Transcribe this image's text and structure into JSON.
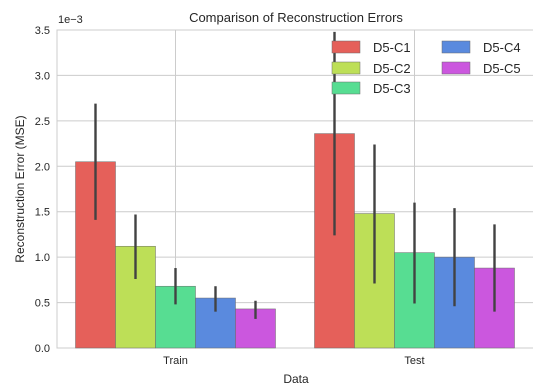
{
  "chart_data": {
    "type": "bar",
    "title": "Comparison of Reconstruction Errors",
    "xlabel": "Data",
    "ylabel": "Reconstruction Error (MSE)",
    "y_offset_label": "1e−3",
    "ylim": [
      0,
      3.5
    ],
    "yticks": [
      "0.0",
      "0.5",
      "1.0",
      "1.5",
      "2.0",
      "2.5",
      "3.0",
      "3.5"
    ],
    "ytick_values": [
      0,
      0.5,
      1.0,
      1.5,
      2.0,
      2.5,
      3.0,
      3.5
    ],
    "categories": [
      "Train",
      "Test"
    ],
    "grid": true,
    "legend_position": "top-right",
    "series": [
      {
        "name": "D5-C1",
        "color": "#e5605a",
        "values": [
          2.05,
          2.36
        ],
        "err_low": [
          1.41,
          1.24
        ],
        "err_high": [
          2.69,
          3.48
        ]
      },
      {
        "name": "D5-C2",
        "color": "#bddf57",
        "values": [
          1.12,
          1.48
        ],
        "err_low": [
          0.76,
          0.71
        ],
        "err_high": [
          1.47,
          2.24
        ]
      },
      {
        "name": "D5-C3",
        "color": "#57dd92",
        "values": [
          0.68,
          1.05
        ],
        "err_low": [
          0.48,
          0.49
        ],
        "err_high": [
          0.88,
          1.6
        ]
      },
      {
        "name": "D5-C4",
        "color": "#5a8ade",
        "values": [
          0.55,
          1.0
        ],
        "err_low": [
          0.4,
          0.46
        ],
        "err_high": [
          0.68,
          1.54
        ]
      },
      {
        "name": "D5-C5",
        "color": "#cb57de",
        "values": [
          0.43,
          0.88
        ],
        "err_low": [
          0.32,
          0.4
        ],
        "err_high": [
          0.52,
          1.36
        ]
      }
    ]
  }
}
